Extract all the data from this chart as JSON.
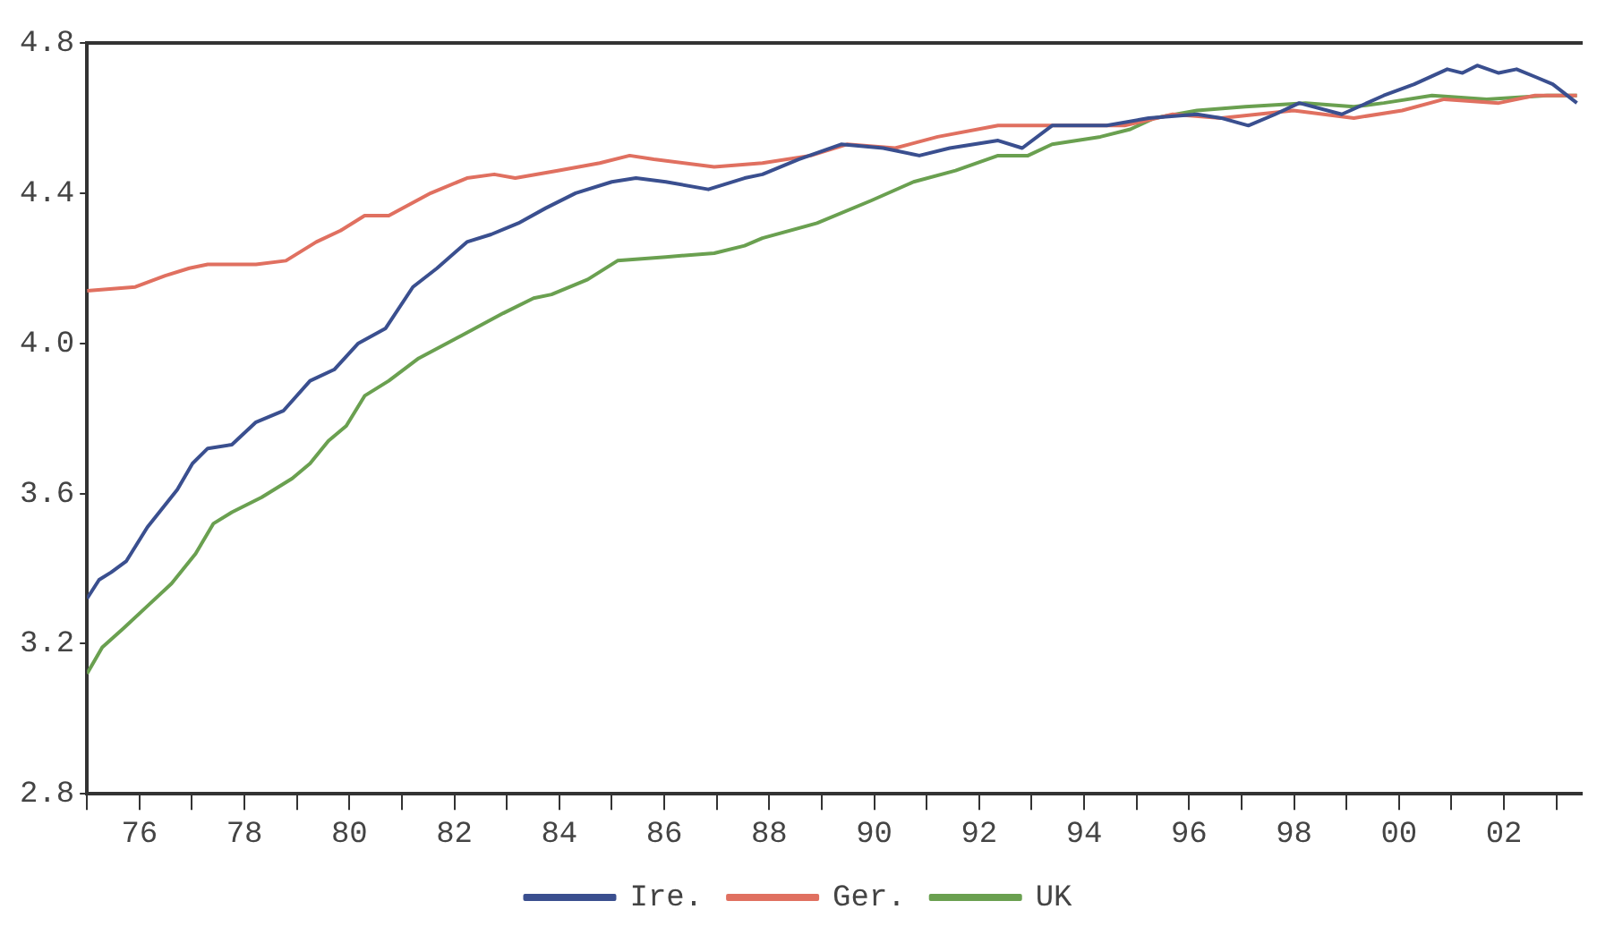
{
  "chart_data": {
    "type": "line",
    "legend": "bottom",
    "grid": false,
    "marker": "none",
    "line_style": "solid",
    "xlim": [
      1975,
      2003.5
    ],
    "xticks": [
      {
        "value": 1975,
        "label": null
      },
      {
        "value": 1976,
        "label": "76"
      },
      {
        "value": 1977,
        "label": null
      },
      {
        "value": 1978,
        "label": "78"
      },
      {
        "value": 1979,
        "label": null
      },
      {
        "value": 1980,
        "label": "80"
      },
      {
        "value": 1981,
        "label": null
      },
      {
        "value": 1982,
        "label": "82"
      },
      {
        "value": 1983,
        "label": null
      },
      {
        "value": 1984,
        "label": "84"
      },
      {
        "value": 1985,
        "label": null
      },
      {
        "value": 1986,
        "label": "86"
      },
      {
        "value": 1987,
        "label": null
      },
      {
        "value": 1988,
        "label": "88"
      },
      {
        "value": 1989,
        "label": null
      },
      {
        "value": 1990,
        "label": "90"
      },
      {
        "value": 1991,
        "label": null
      },
      {
        "value": 1992,
        "label": "92"
      },
      {
        "value": 1993,
        "label": null
      },
      {
        "value": 1994,
        "label": "94"
      },
      {
        "value": 1995,
        "label": null
      },
      {
        "value": 1996,
        "label": "96"
      },
      {
        "value": 1997,
        "label": null
      },
      {
        "value": 1998,
        "label": "98"
      },
      {
        "value": 1999,
        "label": null
      },
      {
        "value": 2000,
        "label": "00"
      },
      {
        "value": 2001,
        "label": null
      },
      {
        "value": 2002,
        "label": "02"
      },
      {
        "value": 2003,
        "label": null
      }
    ],
    "ylim": [
      2.8,
      4.8
    ],
    "yticks": [
      2.8,
      3.2,
      3.6,
      {
        "value": 4,
        "label": "4.0"
      },
      4.4,
      4.8
    ],
    "series": [
      {
        "name": "Ire.",
        "color": "#3a4f8f",
        "x": [
          1975.0,
          1975.23,
          1975.46,
          1975.75,
          1976.15,
          1976.72,
          1977.01,
          1977.3,
          1977.76,
          1978.22,
          1978.74,
          1979.25,
          1979.71,
          1980.17,
          1980.69,
          1981.21,
          1981.67,
          1982.24,
          1982.7,
          1983.22,
          1983.74,
          1984.31,
          1985.0,
          1985.46,
          1986.03,
          1986.84,
          1987.53,
          1987.87,
          1988.56,
          1989.37,
          1990.17,
          1990.86,
          1991.44,
          1992.36,
          1992.82,
          1993.39,
          1994.43,
          1995.23,
          1996.15,
          1996.61,
          1997.13,
          1997.64,
          1998.1,
          1998.91,
          1999.71,
          2000.29,
          2000.92,
          2001.21,
          2001.49,
          2001.9,
          2002.24,
          2002.59,
          2002.93,
          2003.39
        ],
        "values": [
          3.32,
          3.37,
          3.39,
          3.42,
          3.51,
          3.61,
          3.68,
          3.72,
          3.73,
          3.79,
          3.82,
          3.9,
          3.93,
          4.0,
          4.04,
          4.15,
          4.2,
          4.27,
          4.29,
          4.32,
          4.36,
          4.4,
          4.43,
          4.44,
          4.43,
          4.41,
          4.44,
          4.45,
          4.49,
          4.53,
          4.52,
          4.5,
          4.52,
          4.54,
          4.52,
          4.58,
          4.58,
          4.6,
          4.61,
          4.6,
          4.58,
          4.61,
          4.64,
          4.61,
          4.66,
          4.69,
          4.73,
          4.72,
          4.74,
          4.72,
          4.73,
          4.71,
          4.69,
          4.64
        ]
      },
      {
        "name": "Ger.",
        "color": "#e07060",
        "x": [
          1975.0,
          1975.92,
          1976.49,
          1976.95,
          1977.3,
          1978.22,
          1978.79,
          1979.37,
          1979.83,
          1980.29,
          1980.75,
          1981.55,
          1982.24,
          1982.76,
          1983.16,
          1983.97,
          1984.77,
          1985.34,
          1985.8,
          1986.95,
          1987.87,
          1988.79,
          1989.48,
          1990.4,
          1991.21,
          1992.36,
          1993.62,
          1994.77,
          1995.69,
          1996.61,
          1997.99,
          1999.14,
          2000.06,
          2000.86,
          2001.9,
          2002.59,
          2003.39
        ],
        "values": [
          4.14,
          4.15,
          4.18,
          4.2,
          4.21,
          4.21,
          4.22,
          4.27,
          4.3,
          4.34,
          4.34,
          4.4,
          4.44,
          4.45,
          4.44,
          4.46,
          4.48,
          4.5,
          4.49,
          4.47,
          4.48,
          4.5,
          4.53,
          4.52,
          4.55,
          4.58,
          4.58,
          4.58,
          4.61,
          4.6,
          4.62,
          4.6,
          4.62,
          4.65,
          4.64,
          4.66,
          4.66
        ]
      },
      {
        "name": "UK",
        "color": "#6aa050",
        "x": [
          1975.0,
          1975.29,
          1975.69,
          1976.15,
          1976.61,
          1977.07,
          1977.41,
          1977.76,
          1978.33,
          1978.91,
          1979.25,
          1979.6,
          1979.94,
          1980.29,
          1980.75,
          1981.32,
          1982.13,
          1982.93,
          1983.51,
          1983.85,
          1984.54,
          1985.11,
          1986.03,
          1986.95,
          1987.53,
          1987.87,
          1988.91,
          1989.94,
          1990.75,
          1991.55,
          1992.36,
          1992.93,
          1993.39,
          1994.31,
          1994.88,
          1995.34,
          1996.15,
          1997.07,
          1998.22,
          1999.14,
          1999.71,
          2000.63,
          2001.67,
          2002.82,
          2003.39
        ],
        "values": [
          3.12,
          3.19,
          3.24,
          3.3,
          3.36,
          3.44,
          3.52,
          3.55,
          3.59,
          3.64,
          3.68,
          3.74,
          3.78,
          3.86,
          3.9,
          3.96,
          4.02,
          4.08,
          4.12,
          4.13,
          4.17,
          4.22,
          4.23,
          4.24,
          4.26,
          4.28,
          4.32,
          4.38,
          4.43,
          4.46,
          4.5,
          4.5,
          4.53,
          4.55,
          4.57,
          4.6,
          4.62,
          4.63,
          4.64,
          4.63,
          4.64,
          4.66,
          4.65,
          4.66,
          4.66
        ]
      }
    ]
  }
}
